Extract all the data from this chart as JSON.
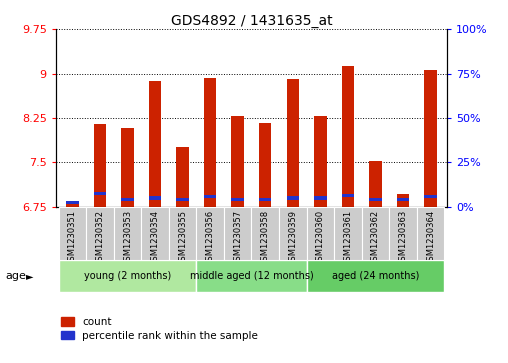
{
  "title": "GDS4892 / 1431635_at",
  "samples": [
    "GSM1230351",
    "GSM1230352",
    "GSM1230353",
    "GSM1230354",
    "GSM1230355",
    "GSM1230356",
    "GSM1230357",
    "GSM1230358",
    "GSM1230359",
    "GSM1230360",
    "GSM1230361",
    "GSM1230362",
    "GSM1230363",
    "GSM1230364"
  ],
  "count_values": [
    6.85,
    8.15,
    8.08,
    8.87,
    7.76,
    8.92,
    8.28,
    8.17,
    8.9,
    8.28,
    9.12,
    7.52,
    6.96,
    9.06
  ],
  "percentile_positions": [
    6.83,
    6.97,
    6.87,
    6.9,
    6.87,
    6.93,
    6.88,
    6.87,
    6.9,
    6.9,
    6.94,
    6.87,
    6.87,
    6.93
  ],
  "ymin": 6.75,
  "ymax": 9.75,
  "y_ticks": [
    6.75,
    7.5,
    8.25,
    9.0,
    9.75
  ],
  "y2_ticks": [
    0,
    25,
    50,
    75,
    100
  ],
  "bar_color": "#cc2200",
  "percentile_color": "#2233cc",
  "group_labels": [
    "young (2 months)",
    "middle aged (12 months)",
    "aged (24 months)"
  ],
  "group_starts": [
    0,
    5,
    9
  ],
  "group_ends": [
    5,
    9,
    14
  ],
  "group_colors": [
    "#b0e8a0",
    "#88dd88",
    "#66cc66"
  ],
  "age_label": "age",
  "legend_count": "count",
  "legend_percentile": "percentile rank within the sample",
  "bar_width": 0.45,
  "base": 6.75,
  "sample_box_color": "#cccccc",
  "title_fontsize": 10,
  "ytick_fontsize": 8,
  "xtick_fontsize": 6,
  "legend_fontsize": 7.5,
  "group_fontsize": 7,
  "age_fontsize": 8
}
